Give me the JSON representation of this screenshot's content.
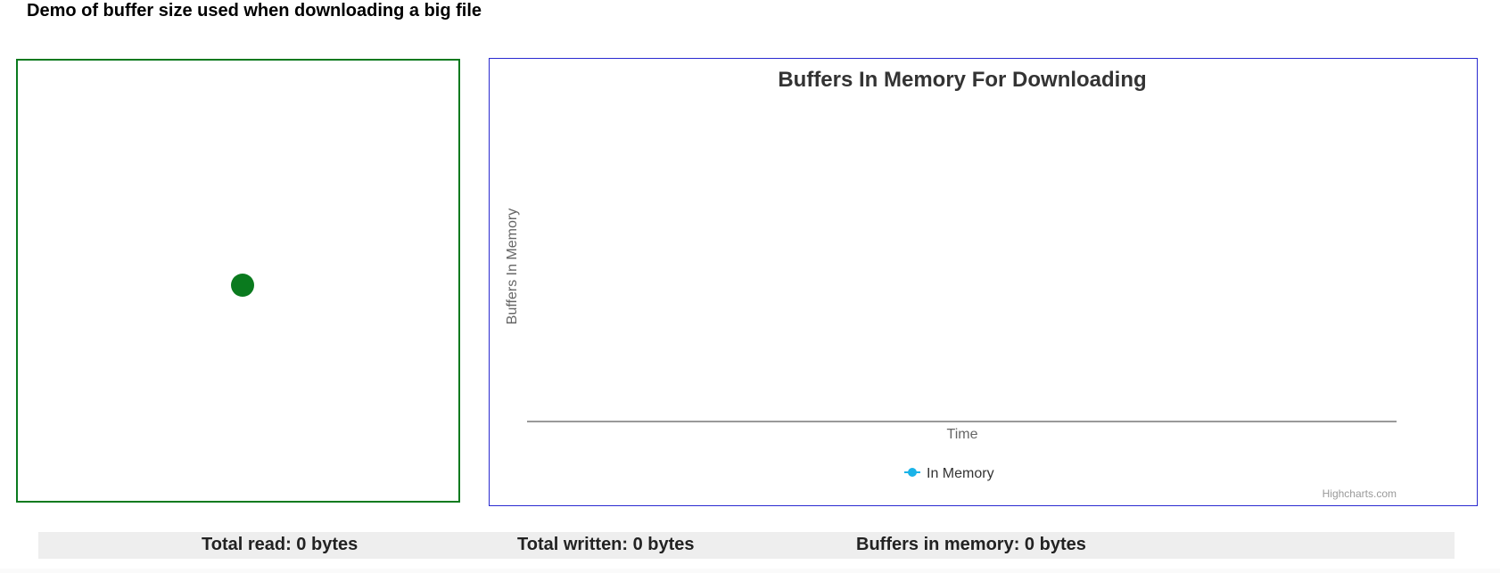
{
  "page": {
    "title": "Demo of buffer size used when downloading a big file"
  },
  "indicator": {
    "color": "#0a7a1e"
  },
  "chart_data": {
    "type": "line",
    "title": "Buffers In Memory For Downloading",
    "xlabel": "Time",
    "ylabel": "Buffers In Memory",
    "series": [
      {
        "name": "In Memory",
        "color": "#1ab3e8",
        "values": []
      }
    ],
    "legend": "bottom-center",
    "credits": "Highcharts.com",
    "grid": false
  },
  "status": {
    "total_read": "Total read: 0 bytes",
    "total_written": "Total written: 0 bytes",
    "buffers_in_memory": "Buffers in memory: 0 bytes"
  },
  "colors": {
    "left_border": "#0a7a1e",
    "chart_border": "#2a2ad0",
    "status_bg": "#eeeeee"
  }
}
